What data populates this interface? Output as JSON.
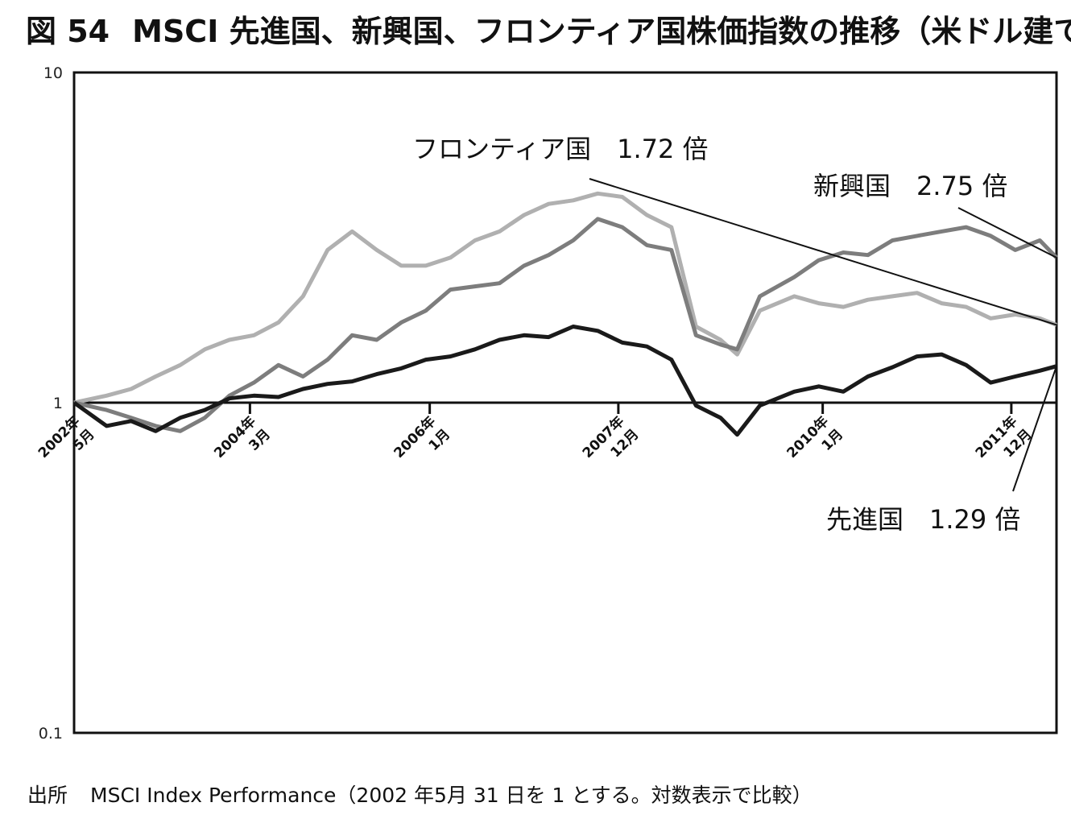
{
  "title": {
    "figure_number": "図 54",
    "text": "MSCI 先進国、新興国、フロンティア国株価指数の推移（米ドル建て）"
  },
  "source": {
    "label": "出所",
    "text": "MSCI Index Performance（2002 年5月 31 日を 1 とする。対数表示で比較）"
  },
  "chart_data": {
    "type": "line",
    "title": "MSCI 先進国、新興国、フロンティア国株価指数の推移（米ドル建て）",
    "yscale": "log",
    "ylim": [
      0.1,
      10
    ],
    "yticks": [
      "10",
      "1",
      "0.1"
    ],
    "xlim": [
      2002.42,
      2012.42
    ],
    "xticks": [
      {
        "x": 2002.42,
        "line1": "2002年",
        "line2": "5月"
      },
      {
        "x": 2004.21,
        "line1": "2004年",
        "line2": "3月"
      },
      {
        "x": 2006.04,
        "line1": "2006年",
        "line2": "1月"
      },
      {
        "x": 2007.96,
        "line1": "2007年",
        "line2": "12月"
      },
      {
        "x": 2010.04,
        "line1": "2010年",
        "line2": "1月"
      },
      {
        "x": 2011.96,
        "line1": "2011年",
        "line2": "12月"
      }
    ],
    "x": [
      2002.42,
      2002.75,
      2003.0,
      2003.25,
      2003.5,
      2003.75,
      2004.0,
      2004.25,
      2004.5,
      2004.75,
      2005.0,
      2005.25,
      2005.5,
      2005.75,
      2006.0,
      2006.25,
      2006.5,
      2006.75,
      2007.0,
      2007.25,
      2007.5,
      2007.75,
      2008.0,
      2008.25,
      2008.5,
      2008.75,
      2009.0,
      2009.17,
      2009.4,
      2009.75,
      2010.0,
      2010.25,
      2010.5,
      2010.75,
      2011.0,
      2011.25,
      2011.5,
      2011.75,
      2012.0,
      2012.25,
      2012.42
    ],
    "series": [
      {
        "name": "先進国",
        "color": "#1a1a1a",
        "values": [
          1.0,
          0.85,
          0.88,
          0.82,
          0.9,
          0.95,
          1.03,
          1.05,
          1.04,
          1.1,
          1.14,
          1.16,
          1.22,
          1.27,
          1.35,
          1.38,
          1.45,
          1.55,
          1.6,
          1.58,
          1.7,
          1.65,
          1.52,
          1.48,
          1.35,
          0.98,
          0.9,
          0.8,
          0.98,
          1.08,
          1.12,
          1.08,
          1.2,
          1.28,
          1.38,
          1.4,
          1.3,
          1.15,
          1.2,
          1.25,
          1.29
        ]
      },
      {
        "name": "新興国",
        "color": "#7d7d7d",
        "values": [
          1.0,
          0.95,
          0.9,
          0.85,
          0.82,
          0.9,
          1.05,
          1.15,
          1.3,
          1.2,
          1.35,
          1.6,
          1.55,
          1.75,
          1.9,
          2.2,
          2.25,
          2.3,
          2.6,
          2.8,
          3.1,
          3.6,
          3.4,
          3.0,
          2.9,
          1.6,
          1.5,
          1.45,
          2.1,
          2.4,
          2.7,
          2.85,
          2.8,
          3.1,
          3.2,
          3.3,
          3.4,
          3.2,
          2.9,
          3.1,
          2.75
        ]
      },
      {
        "name": "フロンティア国",
        "color": "#b0b0b0",
        "values": [
          1.0,
          1.05,
          1.1,
          1.2,
          1.3,
          1.45,
          1.55,
          1.6,
          1.75,
          2.1,
          2.9,
          3.3,
          2.9,
          2.6,
          2.6,
          2.75,
          3.1,
          3.3,
          3.7,
          4.0,
          4.1,
          4.3,
          4.2,
          3.7,
          3.4,
          1.7,
          1.55,
          1.4,
          1.9,
          2.1,
          2.0,
          1.95,
          2.05,
          2.1,
          2.15,
          2.0,
          1.95,
          1.8,
          1.85,
          1.8,
          1.72
        ]
      }
    ],
    "annotations": [
      {
        "series": "フロンティア国",
        "text": "フロンティア国　1.72 倍"
      },
      {
        "series": "新興国",
        "text": "新興国　2.75 倍"
      },
      {
        "series": "先進国",
        "text": "先進国　1.29 倍"
      }
    ],
    "baseline": 1,
    "grid": false
  }
}
